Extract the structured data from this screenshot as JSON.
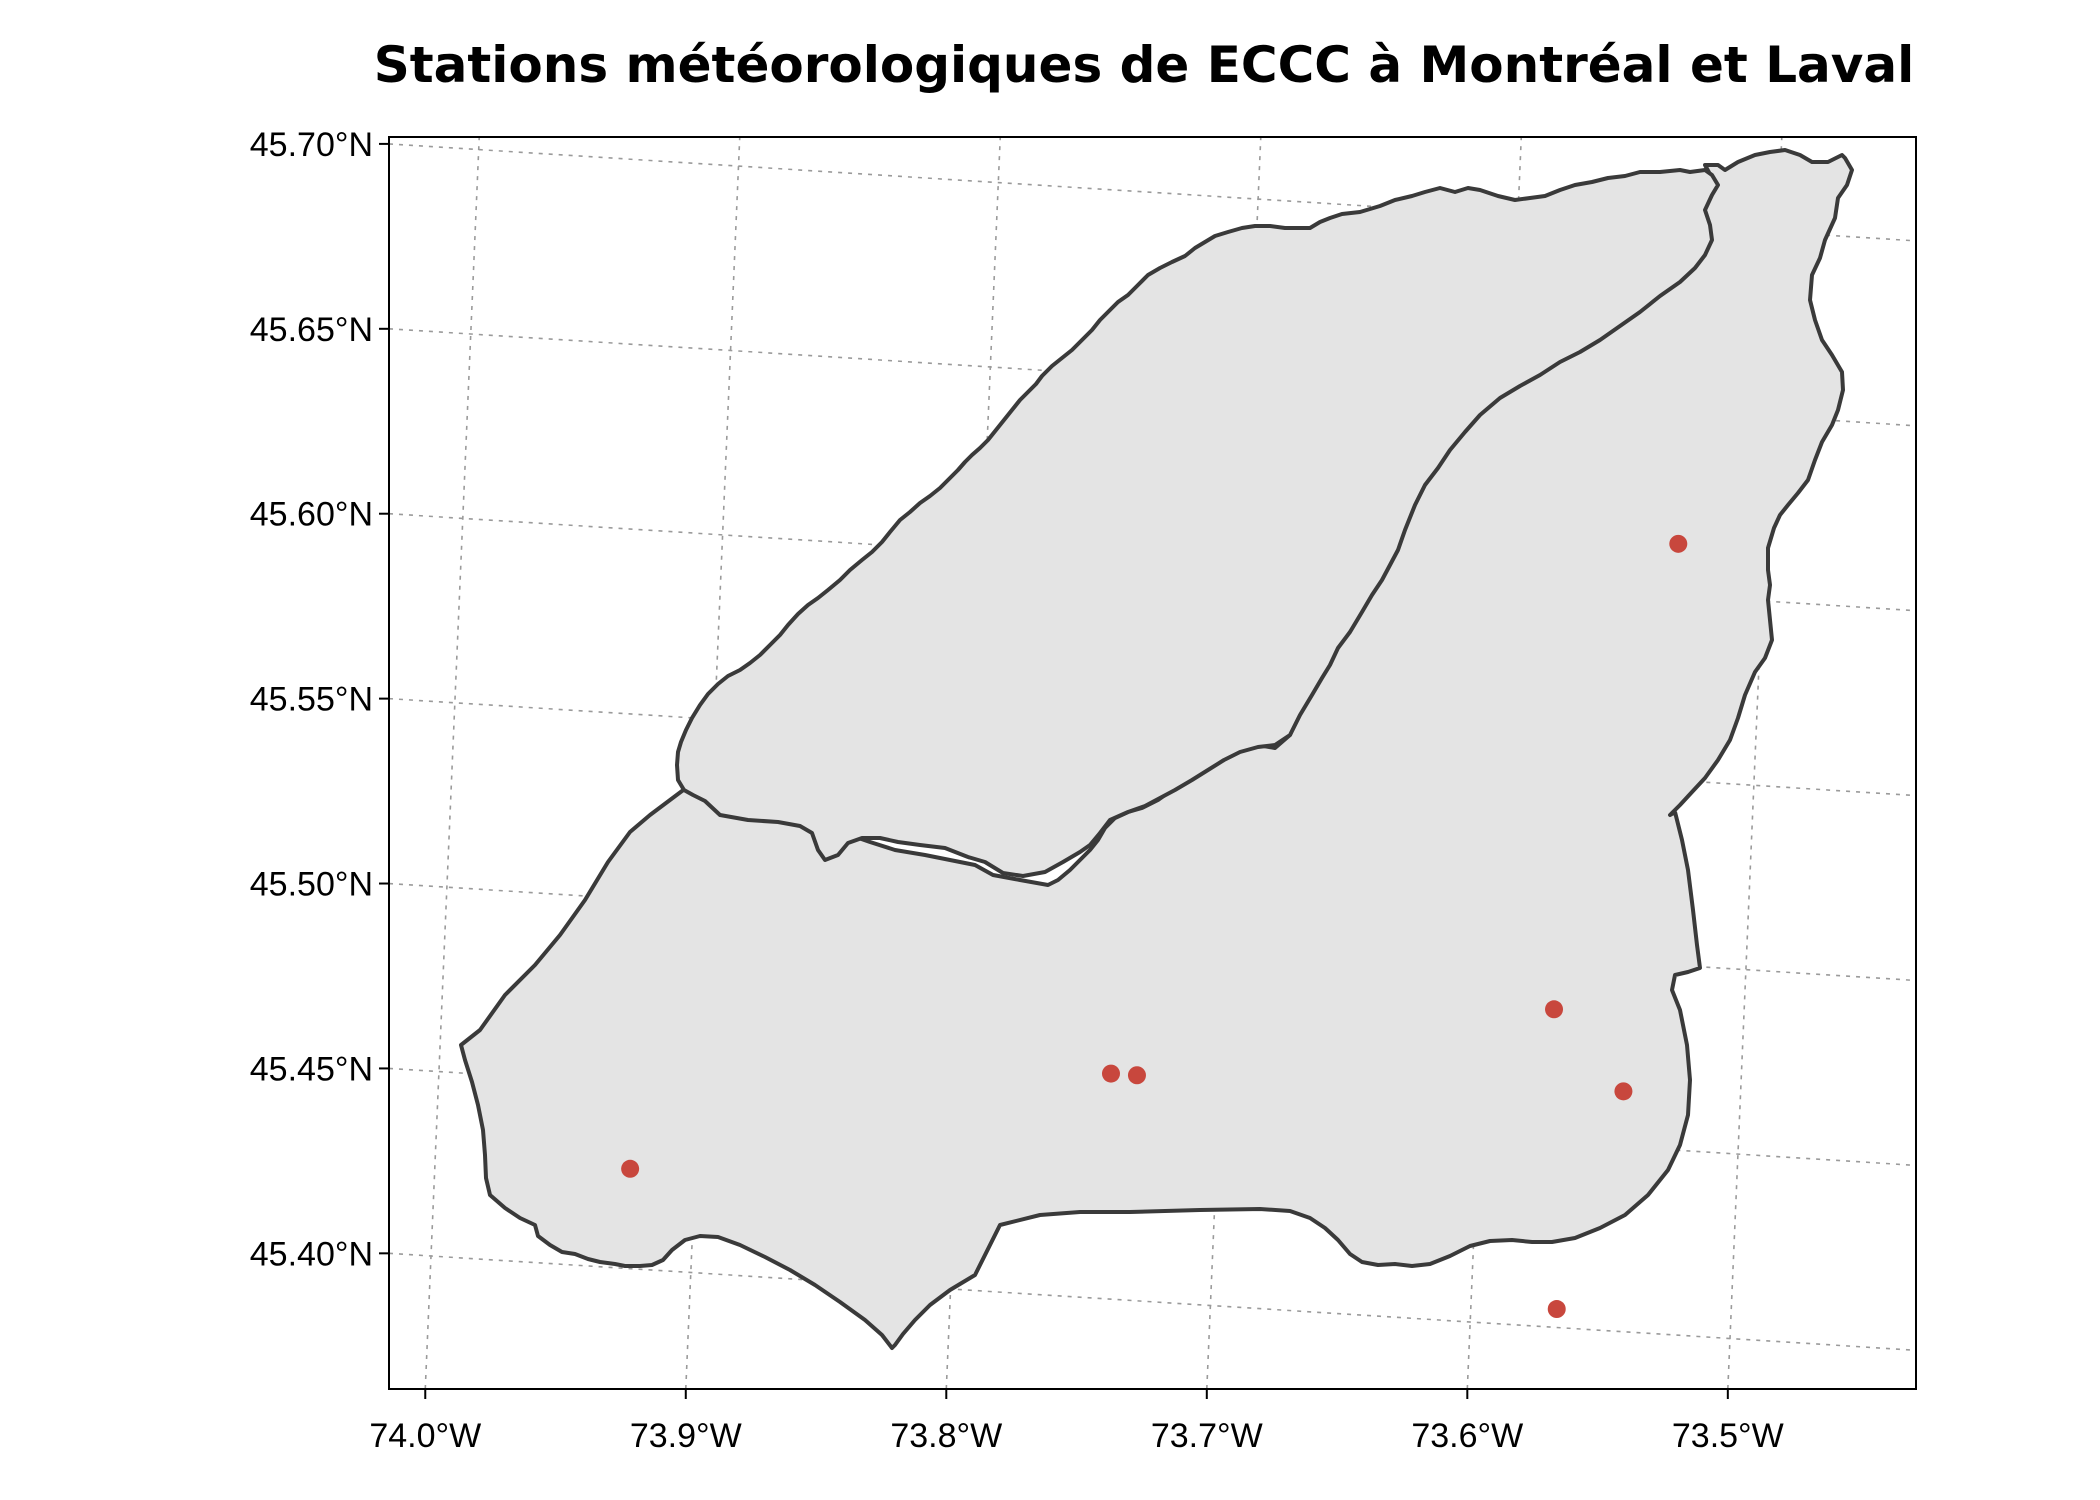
{
  "map": {
    "title": "Stations météorologiques de ECCC à Montréal et Laval",
    "x_ticks": [
      {
        "lon": -74.0,
        "label": "74.0°W"
      },
      {
        "lon": -73.9,
        "label": "73.9°W"
      },
      {
        "lon": -73.8,
        "label": "73.8°W"
      },
      {
        "lon": -73.7,
        "label": "73.7°W"
      },
      {
        "lon": -73.6,
        "label": "73.6°W"
      },
      {
        "lon": -73.5,
        "label": "73.5°W"
      }
    ],
    "y_ticks": [
      {
        "lat": 45.7,
        "label": "45.70°N"
      },
      {
        "lat": 45.65,
        "label": "45.65°N"
      },
      {
        "lat": 45.6,
        "label": "45.60°N"
      },
      {
        "lat": 45.55,
        "label": "45.55°N"
      },
      {
        "lat": 45.5,
        "label": "45.50°N"
      },
      {
        "lat": 45.45,
        "label": "45.45°N"
      },
      {
        "lat": 45.4,
        "label": "45.40°N"
      }
    ],
    "stations": [
      {
        "lon": -73.925,
        "lat": 45.427
      },
      {
        "lon": -73.742,
        "lat": 45.461
      },
      {
        "lon": -73.732,
        "lat": 45.461
      },
      {
        "lon": -73.573,
        "lat": 45.486
      },
      {
        "lon": -73.545,
        "lat": 45.465
      },
      {
        "lon": -73.567,
        "lat": 45.405
      },
      {
        "lon": -73.533,
        "lat": 45.614
      }
    ],
    "colors": {
      "land": "#e4e4e4",
      "boundary": "#3a3a3a",
      "station": "#c8473d",
      "grid": "#9a9a9a"
    }
  }
}
